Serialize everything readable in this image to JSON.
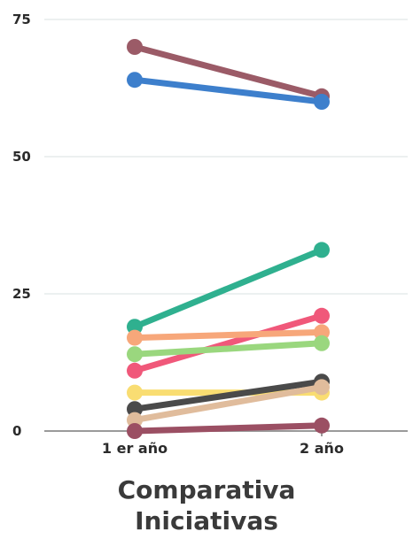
{
  "chart_data": {
    "type": "line",
    "title_lines": [
      "Comparativa",
      "Iniciativas"
    ],
    "categories": [
      "1 er año",
      "2 año"
    ],
    "ylim": [
      0,
      75
    ],
    "yticks": [
      0,
      25,
      50,
      75
    ],
    "grid": true,
    "series": [
      {
        "color": "#9b5b67",
        "values": [
          70,
          61
        ]
      },
      {
        "color": "#3d7fcc",
        "values": [
          64,
          60
        ]
      },
      {
        "color": "#2fb08f",
        "values": [
          19,
          33
        ]
      },
      {
        "color": "#f0587a",
        "values": [
          11,
          21
        ]
      },
      {
        "color": "#f7a77a",
        "values": [
          17,
          18
        ]
      },
      {
        "color": "#9ad77e",
        "values": [
          14,
          16
        ]
      },
      {
        "color": "#f9dd72",
        "values": [
          7,
          7
        ]
      },
      {
        "color": "#4a4a4a",
        "values": [
          4,
          9
        ]
      },
      {
        "color": "#e0bc9c",
        "values": [
          2,
          8
        ]
      },
      {
        "color": "#9b4f63",
        "values": [
          0,
          1
        ]
      }
    ]
  }
}
